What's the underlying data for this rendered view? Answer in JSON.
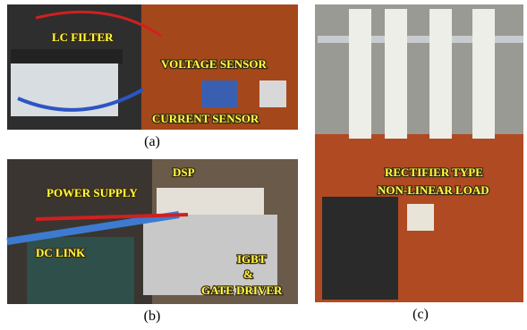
{
  "panels": [
    {
      "caption": "(a)",
      "labels": [
        "LC FILTER",
        "VOLTAGE SENSOR",
        "CURRENT SENSOR"
      ]
    },
    {
      "caption": "(b)",
      "labels": [
        "DSP",
        "POWER SUPPLY",
        "DC LINK",
        "IGBT",
        "&",
        "GATE DRIVER"
      ]
    },
    {
      "caption": "(c)",
      "labels": [
        "RECTIFIER TYPE",
        "NON-LINEAR LOAD"
      ]
    }
  ]
}
